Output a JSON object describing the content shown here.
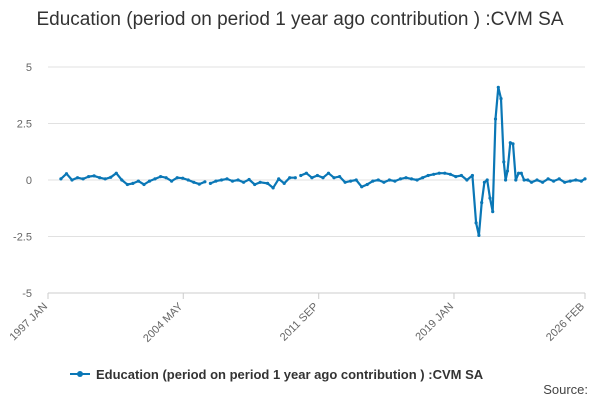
{
  "chart_data": {
    "type": "line",
    "title": "Education (period on period 1 year ago contribution ) :CVM SA",
    "xlabel": "",
    "ylabel": "",
    "ylim": [
      -5,
      5
    ],
    "yticks": [
      5,
      2.5,
      0,
      -2.5,
      -5
    ],
    "ytick_labels": [
      "5",
      "2.5",
      "0",
      "-2.5",
      "-5"
    ],
    "xlim": [
      1997.0,
      2026.1
    ],
    "xticks": [
      1997.0,
      2004.33,
      2011.67,
      2019.0,
      2026.1
    ],
    "xtick_labels": [
      "1997 JAN",
      "2004 MAY",
      "2011 SEP",
      "2019 JAN",
      "2026 FEB"
    ],
    "grid": true,
    "series": [
      {
        "name": "Education (period on period 1 year ago contribution ) :CVM SA",
        "color": "#0a77b6",
        "x": [
          1997.7,
          1998.0,
          1998.3,
          1998.6,
          1998.9,
          1999.2,
          1999.5,
          1999.8,
          2000.1,
          2000.4,
          2000.7,
          2001.0,
          2001.3,
          2001.6,
          2001.9,
          2002.2,
          2002.5,
          2002.8,
          2003.1,
          2003.4,
          2003.7,
          2004.0,
          2004.3,
          2004.6,
          2004.9,
          2005.2,
          2005.5,
          2005.8,
          2006.1,
          2006.4,
          2006.7,
          2007.0,
          2007.3,
          2007.6,
          2007.9,
          2008.2,
          2008.5,
          2008.9,
          2009.2,
          2009.5,
          2009.8,
          2010.1,
          2010.4,
          2010.7,
          2011.0,
          2011.3,
          2011.6,
          2011.9,
          2012.2,
          2012.5,
          2012.8,
          2013.1,
          2013.4,
          2013.7,
          2014.0,
          2014.3,
          2014.6,
          2014.9,
          2015.2,
          2015.5,
          2015.8,
          2016.1,
          2016.4,
          2016.7,
          2017.0,
          2017.3,
          2017.6,
          2017.9,
          2018.2,
          2018.5,
          2018.8,
          2019.1,
          2019.4,
          2019.7,
          2020.0,
          2020.2,
          2020.35,
          2020.5,
          2020.65,
          2020.8,
          2020.95,
          2021.1,
          2021.25,
          2021.4,
          2021.55,
          2021.7,
          2021.8,
          2021.9,
          2022.05,
          2022.2,
          2022.35,
          2022.5,
          2022.65,
          2022.8,
          2023.0,
          2023.2,
          2023.5,
          2023.8,
          2024.1,
          2024.4,
          2024.7,
          2025.0,
          2025.3,
          2025.6,
          2025.9,
          2026.1
        ],
        "y": [
          0.05,
          0.28,
          0.0,
          0.1,
          0.05,
          0.15,
          0.18,
          0.1,
          0.05,
          0.12,
          0.3,
          0.0,
          -0.2,
          -0.15,
          -0.05,
          -0.2,
          -0.05,
          0.05,
          0.15,
          0.1,
          -0.05,
          0.1,
          0.08,
          0.0,
          -0.1,
          -0.18,
          -0.08,
          -0.15,
          -0.05,
          0.0,
          0.05,
          -0.05,
          0.0,
          -0.1,
          0.02,
          -0.2,
          -0.1,
          -0.15,
          -0.35,
          0.05,
          -0.15,
          0.1,
          0.1,
          0.2,
          0.3,
          0.1,
          0.2,
          0.1,
          0.3,
          0.1,
          0.15,
          -0.1,
          -0.05,
          0.0,
          -0.3,
          -0.2,
          -0.05,
          0.0,
          -0.1,
          0.0,
          -0.05,
          0.05,
          0.1,
          0.05,
          0.0,
          0.1,
          0.2,
          0.25,
          0.3,
          0.3,
          0.25,
          0.15,
          0.2,
          0.0,
          0.2,
          -1.9,
          -2.45,
          -1.0,
          -0.1,
          0.0,
          -0.8,
          -1.4,
          2.7,
          4.1,
          3.6,
          0.8,
          0.0,
          0.4,
          1.65,
          1.6,
          0.0,
          0.3,
          0.3,
          0.0,
          0.0,
          -0.1,
          0.0,
          -0.1,
          0.05,
          -0.05,
          0.05,
          -0.1,
          -0.05,
          0.0,
          -0.05,
          0.05
        ]
      }
    ],
    "gaps_after_index": [
      26,
      42
    ]
  },
  "legend": {
    "label": "Education (period on period 1 year ago contribution ) :CVM SA"
  },
  "source_label": "Source:"
}
